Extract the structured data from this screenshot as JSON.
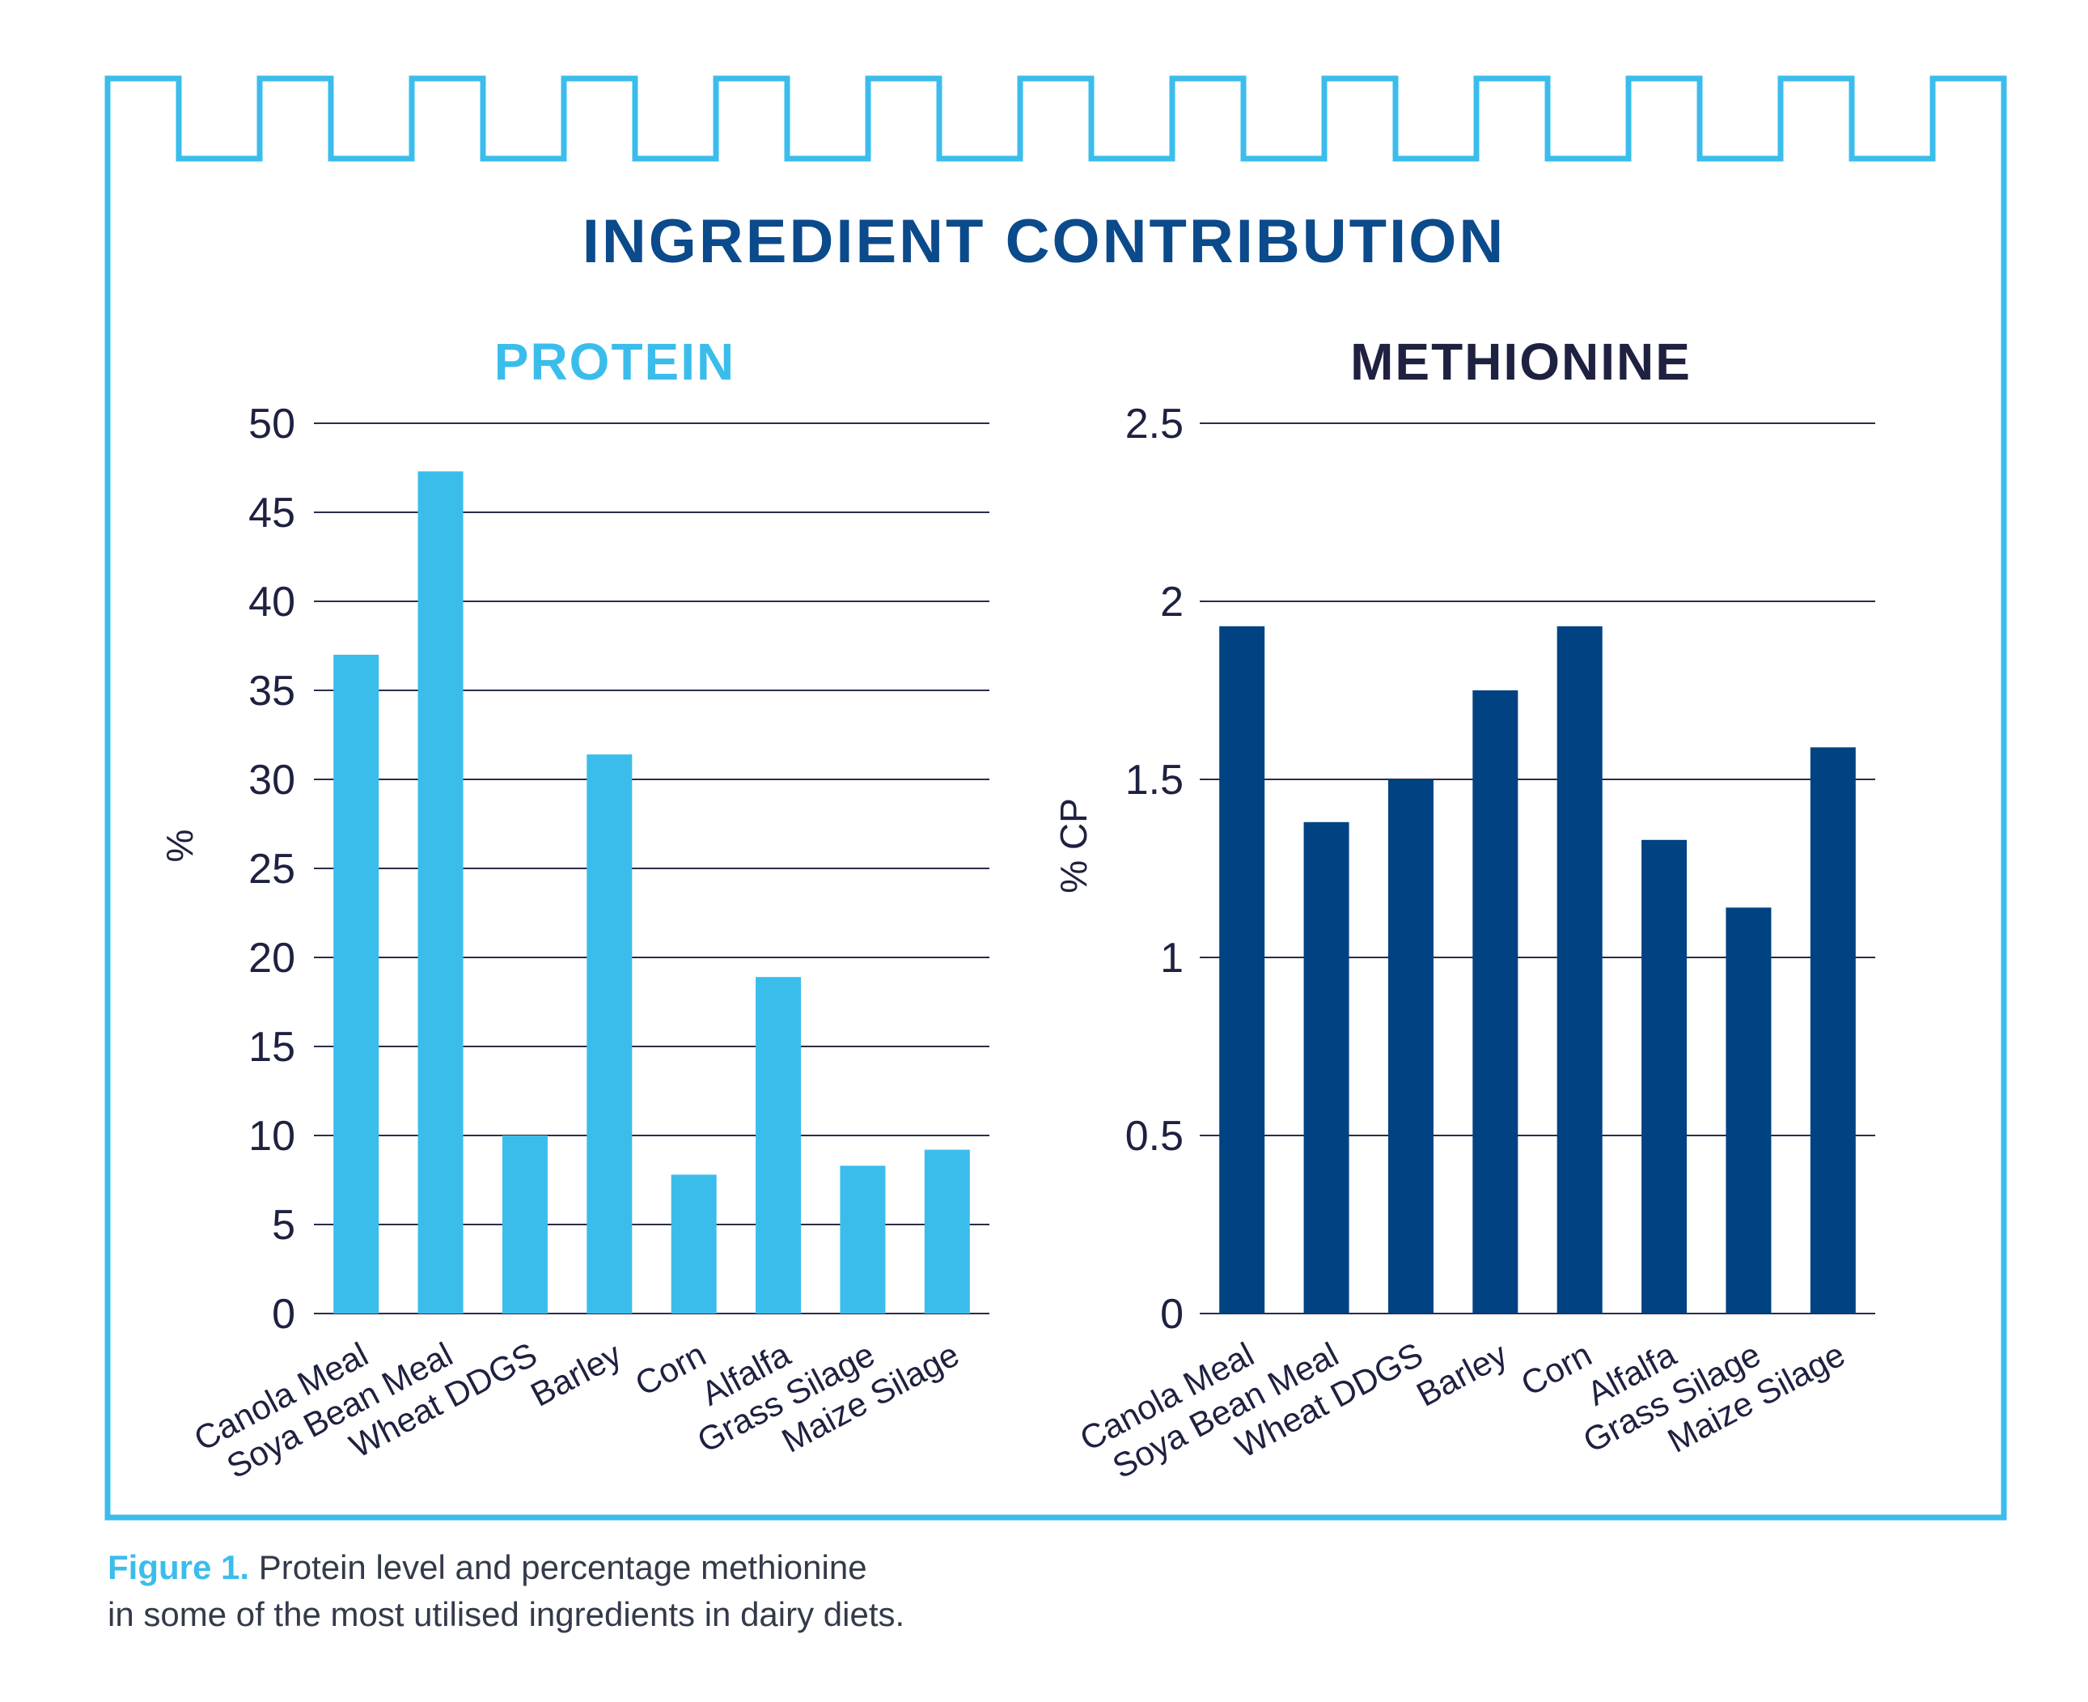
{
  "title": "INGREDIENT CONTRIBUTION",
  "caption": {
    "label": "Figure 1.",
    "line1": " Protein level and percentage methionine",
    "line2": "in some of the most utilised ingredients in dairy diets."
  },
  "colors": {
    "frame": "#3bbdec",
    "title": "#0b4a8b",
    "protein_bar": "#3bbdec",
    "methionine_bar": "#004282",
    "axis_text": "#1e2140",
    "grid": "#2a2d4a"
  },
  "chart_data": [
    {
      "type": "bar",
      "title": "PROTEIN",
      "ylabel": "%",
      "xlabel": "",
      "ylim": [
        0,
        50
      ],
      "yticks": [
        "0",
        "5",
        "10",
        "15",
        "20",
        "25",
        "30",
        "35",
        "40",
        "45",
        "50"
      ],
      "grid": "horizontal",
      "categories": [
        "Canola Meal",
        "Soya Bean Meal",
        "Wheat DDGS",
        "Barley",
        "Corn",
        "Alfalfa",
        "Grass Silage",
        "Maize Silage"
      ],
      "values": [
        37,
        47.3,
        10,
        31.4,
        7.8,
        18.9,
        8.3,
        9.2
      ]
    },
    {
      "type": "bar",
      "title": "METHIONINE",
      "ylabel": "% CP",
      "xlabel": "",
      "ylim": [
        0,
        2.5
      ],
      "yticks": [
        "0",
        "0.5",
        "1",
        "1.5",
        "2",
        "2.5"
      ],
      "grid": "horizontal",
      "categories": [
        "Canola Meal",
        "Soya Bean Meal",
        "Wheat DDGS",
        "Barley",
        "Corn",
        "Alfalfa",
        "Grass Silage",
        "Maize Silage"
      ],
      "values": [
        1.93,
        1.38,
        1.5,
        1.75,
        1.93,
        1.33,
        1.14,
        1.59
      ]
    }
  ]
}
